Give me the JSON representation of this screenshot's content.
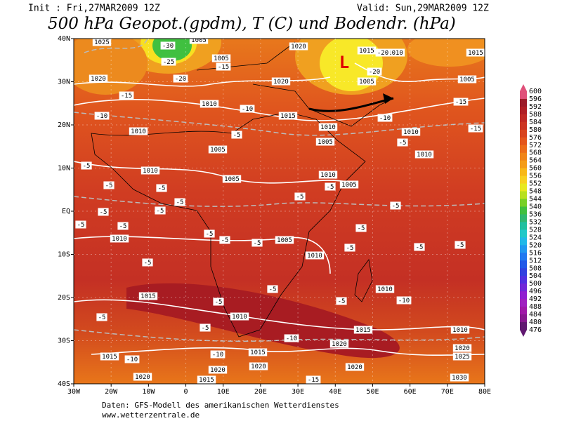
{
  "header": {
    "init": "Init : Fri,27MAR2009 12Z",
    "valid": "Valid: Sun,29MAR2009 12Z",
    "title": "500 hPa Geopot.(gpdm), T (C) und Bodendr. (hPa)"
  },
  "map": {
    "low_marker": "L",
    "lon_labels": [
      "30W",
      "20W",
      "10W",
      "0",
      "10E",
      "20E",
      "30E",
      "40E",
      "50E",
      "60E",
      "70E",
      "80E"
    ],
    "lat_labels": [
      "40N",
      "30N",
      "20N",
      "10N",
      "EQ",
      "10S",
      "20S",
      "30S",
      "40S"
    ],
    "contour_labels": [
      "1025",
      "1005",
      "1020",
      "1015",
      "1010",
      "1015",
      "1005",
      "1020",
      "1020",
      "1005",
      "1005",
      "1010",
      "1015",
      "1010",
      "1010",
      "1010",
      "1005",
      "1005",
      "1010",
      "1010",
      "1005",
      "1010",
      "1005",
      "1010",
      "1005",
      "1010",
      "1010",
      "1015",
      "1010",
      "1015",
      "1010",
      "1020",
      "1020",
      "1025",
      "1015",
      "1015",
      "1020",
      "1020",
      "1020",
      "1020",
      "1015",
      "1030",
      "-30",
      "-25",
      "-20",
      "-15",
      "-10",
      "-15",
      "-10",
      "-5",
      "-5",
      "-5",
      "-5",
      "-5",
      "-5",
      "-5",
      "-5",
      "-5",
      "-5",
      "-5",
      "-5",
      "-5",
      "-5",
      "-5",
      "-5",
      "-5",
      "-5",
      "-5",
      "-5",
      "-5",
      "-5",
      "-5",
      "-5",
      "-5",
      "-10",
      "-10",
      "-10",
      "-15",
      "-10",
      "-15",
      "-15",
      "-20",
      "-20",
      "-10",
      "-5"
    ]
  },
  "colorbar": {
    "labels": [
      600,
      596,
      592,
      588,
      584,
      580,
      576,
      572,
      568,
      564,
      560,
      556,
      552,
      548,
      544,
      540,
      536,
      532,
      528,
      524,
      520,
      516,
      512,
      508,
      504,
      500,
      496,
      492,
      488,
      484,
      480,
      476
    ]
  },
  "footer": {
    "source": "Daten: GFS-Modell des amerikanischen Wetterdienstes",
    "url": "www.wetterzentrale.de"
  }
}
